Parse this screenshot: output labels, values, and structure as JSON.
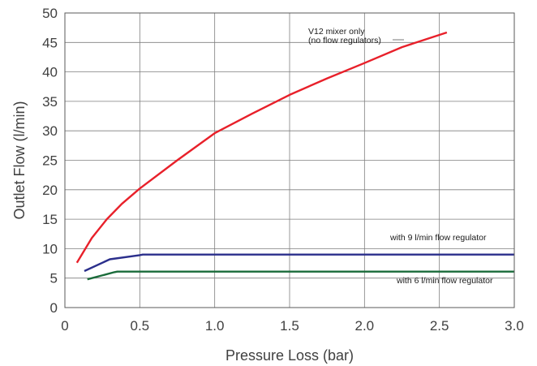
{
  "chart_data": {
    "type": "line",
    "title": "",
    "xlabel": "Pressure Loss (bar)",
    "ylabel": "Outlet Flow (l/min)",
    "xlim": [
      0,
      3.0
    ],
    "ylim": [
      0,
      50
    ],
    "x_ticks": [
      "0",
      "0.5",
      "1.0",
      "1.5",
      "2.0",
      "2.5",
      "3.0"
    ],
    "y_ticks": [
      "0",
      "5",
      "10",
      "15",
      "20",
      "25",
      "30",
      "35",
      "40",
      "45",
      "50"
    ],
    "grid": true,
    "series": [
      {
        "name": "V12 mixer only (no flow regulators)",
        "color": "#e8202a",
        "x": [
          0.08,
          0.18,
          0.28,
          0.38,
          0.5,
          0.75,
          1.0,
          1.25,
          1.5,
          1.75,
          2.0,
          2.25,
          2.55
        ],
        "y": [
          7.6,
          11.8,
          15.0,
          17.6,
          20.2,
          25.0,
          29.6,
          32.9,
          36.1,
          38.9,
          41.5,
          44.2,
          46.7
        ]
      },
      {
        "name": "with 9 l/min flow regulator",
        "color": "#2b2f8c",
        "x": [
          0.13,
          0.3,
          0.5,
          0.52,
          3.0
        ],
        "y": [
          6.2,
          8.2,
          8.9,
          9.0,
          9.0
        ]
      },
      {
        "name": "with 6 l/min flow regulator",
        "color": "#1a6b3a",
        "x": [
          0.15,
          0.33,
          0.35,
          3.0
        ],
        "y": [
          4.8,
          6.0,
          6.1,
          6.1
        ]
      }
    ],
    "annotations": {
      "red_line1": "V12 mixer only",
      "red_line2": "(no flow regulators)",
      "blue": "with 9 l/min flow regulator",
      "green": "with 6 l/min flow regulator"
    }
  }
}
